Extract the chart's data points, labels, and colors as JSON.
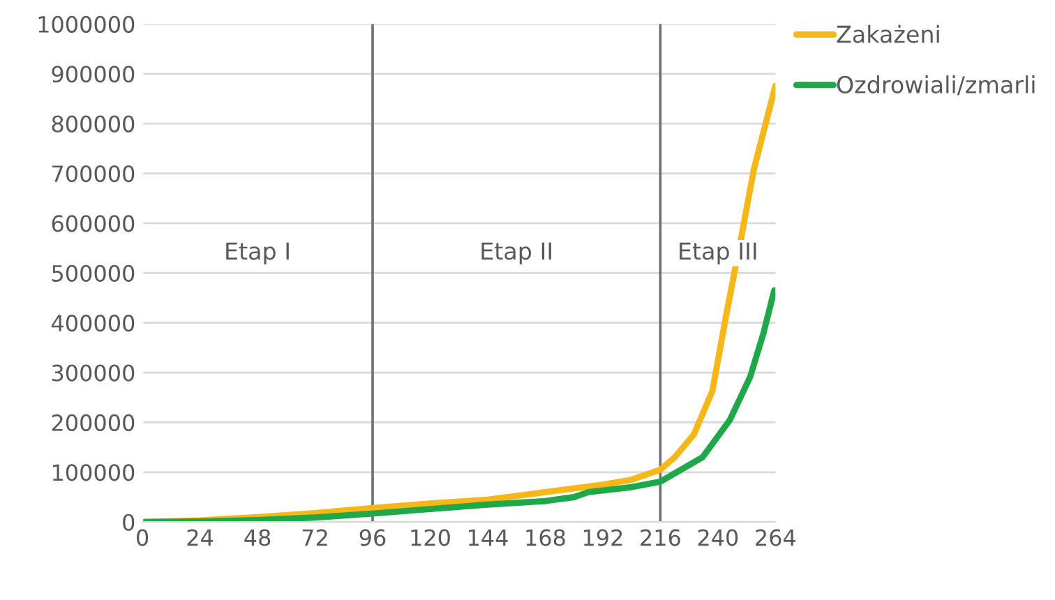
{
  "chart_data": {
    "type": "line",
    "x": [
      0,
      24,
      48,
      72,
      96,
      120,
      144,
      168,
      192,
      204,
      216,
      222,
      230,
      237.7,
      243.6,
      249.4,
      255,
      264
    ],
    "series": [
      {
        "name": "Zakażeni",
        "color": "#f5b818",
        "values": [
          0,
          3000,
          10000,
          18000,
          28000,
          37000,
          45000,
          60000,
          75000,
          85000,
          105000,
          130000,
          176000,
          263000,
          419000,
          563000,
          708000,
          876000
        ]
      },
      {
        "name": "Ozdrowiali/zmarli",
        "color": "#1ea84a",
        "x": [
          0,
          24,
          48,
          72,
          96,
          120,
          144,
          168,
          180,
          186,
          204,
          216,
          233.6,
          245,
          253.5,
          259,
          263.5
        ],
        "values": [
          0,
          1000,
          4000,
          9000,
          17000,
          26000,
          35000,
          42000,
          50000,
          60000,
          70000,
          81000,
          130000,
          205000,
          292000,
          379000,
          465000
        ]
      }
    ],
    "xlim": [
      0,
      264
    ],
    "xticks": [
      0,
      24,
      48,
      72,
      96,
      120,
      144,
      168,
      192,
      216,
      240,
      264
    ],
    "ylim": [
      0,
      1000000
    ],
    "yticks": [
      0,
      100000,
      200000,
      300000,
      400000,
      500000,
      600000,
      700000,
      800000,
      900000,
      1000000
    ],
    "grid": "y",
    "legend": "top right",
    "ref_lines": [
      {
        "axis": "x",
        "value": 96,
        "color": "#707070"
      },
      {
        "axis": "x",
        "value": 216,
        "color": "#707070"
      }
    ],
    "annotations": [
      "Etap I",
      "Etap II",
      "Etap III"
    ]
  }
}
